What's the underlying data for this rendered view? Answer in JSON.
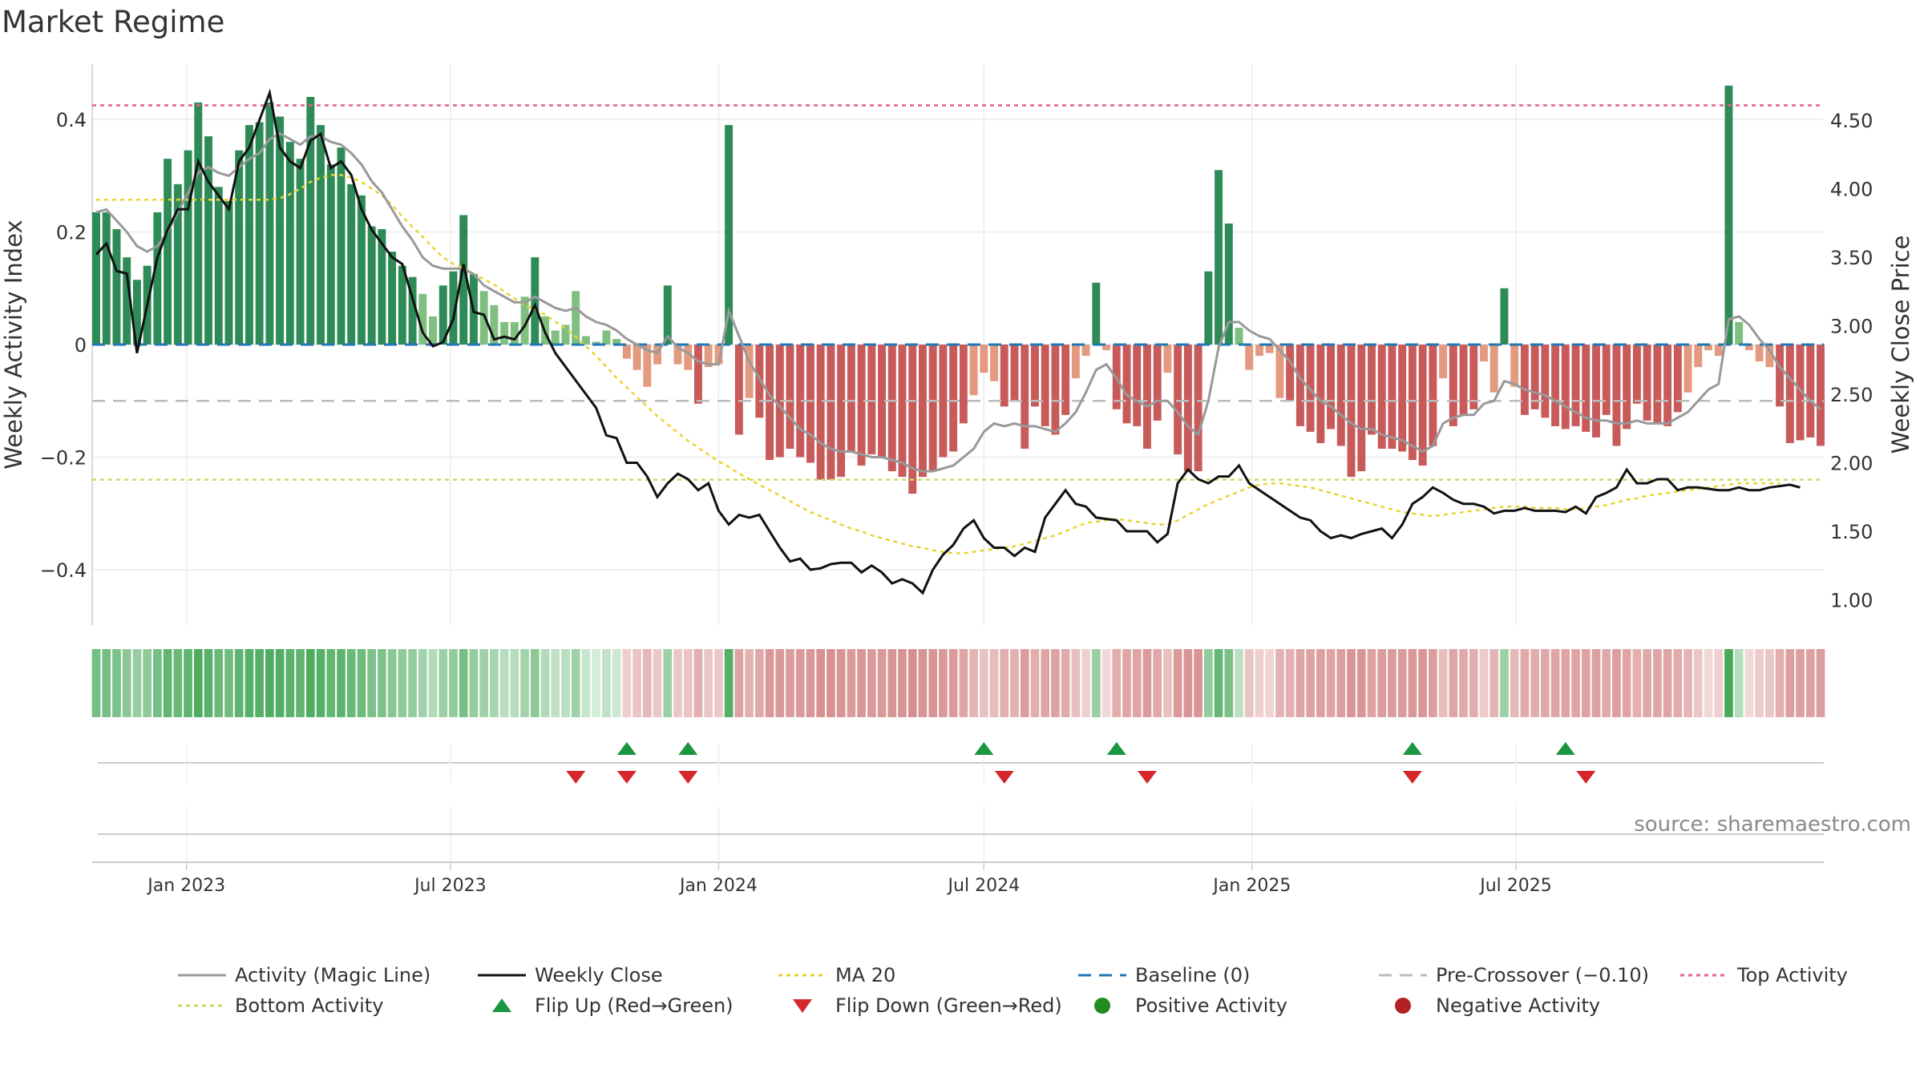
{
  "title": "Market Regime",
  "source": "source: sharemaestro.com",
  "chart_data": {
    "type": "bar",
    "start_date": "2022-10-31",
    "y_left_label": "Weekly Activity Index",
    "y_right_label": "Weekly Close Price",
    "y_left_range": [
      -0.5,
      0.5
    ],
    "y_right_range": [
      0.9,
      4.9
    ],
    "y_left_ticks": [
      {
        "v": 0.4,
        "label": "0.4"
      },
      {
        "v": 0.2,
        "label": "0.2"
      },
      {
        "v": 0,
        "label": "0"
      },
      {
        "v": -0.2,
        "label": "−0.2"
      },
      {
        "v": -0.4,
        "label": "−0.4"
      }
    ],
    "y_right_ticks": [
      "4.50",
      "4.00",
      "3.50",
      "3.00",
      "2.50",
      "2.00",
      "1.50",
      "1.00"
    ],
    "x_ticks": [
      {
        "label": "Jan 2023",
        "date": "2023-01-01"
      },
      {
        "label": "Jul 2023",
        "date": "2023-07-01"
      },
      {
        "label": "Jan 2024",
        "date": "2024-01-01"
      },
      {
        "label": "Jul 2024",
        "date": "2024-07-01"
      },
      {
        "label": "Jan 2025",
        "date": "2025-01-01"
      },
      {
        "label": "Jul 2025",
        "date": "2025-07-01"
      }
    ],
    "activity": [
      0.235,
      0.235,
      0.205,
      0.155,
      0.115,
      0.14,
      0.235,
      0.33,
      0.285,
      0.345,
      0.43,
      0.37,
      0.28,
      0.255,
      0.345,
      0.39,
      0.395,
      0.43,
      0.405,
      0.36,
      0.33,
      0.44,
      0.39,
      0.32,
      0.35,
      0.285,
      0.265,
      0.21,
      0.205,
      0.165,
      0.14,
      0.12,
      0.09,
      0.05,
      0.105,
      0.13,
      0.23,
      0.125,
      0.095,
      0.07,
      0.04,
      0.04,
      0.085,
      0.155,
      0.05,
      0.025,
      0.035,
      0.095,
      0.015,
      0.005,
      0.025,
      0.01,
      -0.025,
      -0.045,
      -0.075,
      -0.035,
      0.105,
      -0.035,
      -0.045,
      -0.105,
      -0.04,
      -0.035,
      0.39,
      -0.16,
      -0.095,
      -0.13,
      -0.205,
      -0.2,
      -0.185,
      -0.2,
      -0.21,
      -0.24,
      -0.24,
      -0.235,
      -0.19,
      -0.215,
      -0.195,
      -0.2,
      -0.225,
      -0.235,
      -0.265,
      -0.235,
      -0.225,
      -0.2,
      -0.19,
      -0.14,
      -0.09,
      -0.05,
      -0.065,
      -0.11,
      -0.1,
      -0.185,
      -0.11,
      -0.145,
      -0.16,
      -0.125,
      -0.06,
      -0.02,
      0.11,
      -0.01,
      -0.115,
      -0.14,
      -0.145,
      -0.185,
      -0.135,
      -0.05,
      -0.195,
      -0.225,
      -0.225,
      0.13,
      0.31,
      0.215,
      0.03,
      -0.045,
      -0.02,
      -0.015,
      -0.095,
      -0.1,
      -0.145,
      -0.155,
      -0.175,
      -0.15,
      -0.18,
      -0.235,
      -0.225,
      -0.16,
      -0.185,
      -0.185,
      -0.19,
      -0.205,
      -0.215,
      -0.18,
      -0.06,
      -0.145,
      -0.125,
      -0.115,
      -0.03,
      -0.085,
      0.1,
      -0.075,
      -0.125,
      -0.115,
      -0.13,
      -0.145,
      -0.15,
      -0.145,
      -0.155,
      -0.165,
      -0.125,
      -0.18,
      -0.15,
      -0.105,
      -0.135,
      -0.14,
      -0.145,
      -0.12,
      -0.085,
      -0.04,
      -0.01,
      -0.02,
      0.46,
      0.04,
      -0.01,
      -0.03,
      -0.04,
      -0.11,
      -0.175,
      -0.17,
      -0.165,
      -0.18
    ],
    "magic_line": [
      0.235,
      0.24,
      0.22,
      0.2,
      0.175,
      0.165,
      0.175,
      0.2,
      0.235,
      0.27,
      0.305,
      0.315,
      0.305,
      0.3,
      0.315,
      0.33,
      0.34,
      0.365,
      0.375,
      0.365,
      0.355,
      0.37,
      0.37,
      0.36,
      0.355,
      0.34,
      0.32,
      0.29,
      0.27,
      0.24,
      0.21,
      0.185,
      0.155,
      0.14,
      0.135,
      0.135,
      0.135,
      0.125,
      0.105,
      0.095,
      0.085,
      0.075,
      0.075,
      0.085,
      0.075,
      0.065,
      0.06,
      0.065,
      0.05,
      0.04,
      0.035,
      0.025,
      0.01,
      0,
      -0.01,
      -0.015,
      0.015,
      -0.005,
      -0.015,
      -0.03,
      -0.035,
      -0.035,
      0.06,
      0.015,
      -0.03,
      -0.06,
      -0.09,
      -0.11,
      -0.13,
      -0.15,
      -0.16,
      -0.175,
      -0.185,
      -0.19,
      -0.19,
      -0.195,
      -0.2,
      -0.2,
      -0.205,
      -0.21,
      -0.22,
      -0.225,
      -0.225,
      -0.22,
      -0.215,
      -0.2,
      -0.185,
      -0.155,
      -0.14,
      -0.145,
      -0.14,
      -0.145,
      -0.145,
      -0.15,
      -0.155,
      -0.14,
      -0.12,
      -0.085,
      -0.045,
      -0.035,
      -0.06,
      -0.09,
      -0.1,
      -0.11,
      -0.1,
      -0.1,
      -0.12,
      -0.145,
      -0.16,
      -0.1,
      -0.005,
      0.04,
      0.04,
      0.025,
      0.015,
      0.01,
      -0.01,
      -0.03,
      -0.06,
      -0.08,
      -0.1,
      -0.11,
      -0.125,
      -0.14,
      -0.15,
      -0.15,
      -0.16,
      -0.165,
      -0.17,
      -0.18,
      -0.19,
      -0.18,
      -0.14,
      -0.13,
      -0.125,
      -0.125,
      -0.105,
      -0.1,
      -0.065,
      -0.07,
      -0.08,
      -0.085,
      -0.09,
      -0.1,
      -0.11,
      -0.12,
      -0.13,
      -0.135,
      -0.135,
      -0.14,
      -0.14,
      -0.135,
      -0.14,
      -0.14,
      -0.14,
      -0.13,
      -0.12,
      -0.1,
      -0.08,
      -0.07,
      0.045,
      0.05,
      0.035,
      0.01,
      -0.01,
      -0.04,
      -0.06,
      -0.08,
      -0.1,
      -0.115
    ],
    "weekly_close": [
      3.52,
      3.6,
      3.4,
      3.38,
      2.8,
      3.15,
      3.5,
      3.7,
      3.85,
      3.85,
      4.2,
      4.05,
      3.95,
      3.85,
      4.2,
      4.3,
      4.5,
      4.7,
      4.3,
      4.2,
      4.15,
      4.35,
      4.4,
      4.15,
      4.2,
      4.1,
      3.85,
      3.7,
      3.6,
      3.5,
      3.45,
      3.2,
      2.95,
      2.85,
      2.88,
      3.05,
      3.45,
      3.1,
      3.08,
      2.9,
      2.92,
      2.9,
      3.0,
      3.15,
      2.95,
      2.8,
      2.7,
      2.6,
      2.5,
      2.4,
      2.2,
      2.18,
      2.0,
      2.0,
      1.9,
      1.75,
      1.85,
      1.92,
      1.88,
      1.8,
      1.85,
      1.65,
      1.55,
      1.62,
      1.6,
      1.62,
      1.5,
      1.38,
      1.28,
      1.3,
      1.22,
      1.23,
      1.26,
      1.27,
      1.27,
      1.2,
      1.25,
      1.2,
      1.12,
      1.15,
      1.12,
      1.05,
      1.22,
      1.33,
      1.4,
      1.52,
      1.58,
      1.45,
      1.38,
      1.38,
      1.32,
      1.38,
      1.35,
      1.6,
      1.7,
      1.8,
      1.7,
      1.68,
      1.6,
      1.59,
      1.58,
      1.5,
      1.5,
      1.5,
      1.42,
      1.48,
      1.85,
      1.95,
      1.88,
      1.85,
      1.9,
      1.9,
      1.98,
      1.85,
      1.8,
      1.75,
      1.7,
      1.65,
      1.6,
      1.58,
      1.5,
      1.45,
      1.47,
      1.45,
      1.48,
      1.5,
      1.52,
      1.45,
      1.55,
      1.7,
      1.75,
      1.82,
      1.78,
      1.73,
      1.7,
      1.7,
      1.68,
      1.63,
      1.65,
      1.65,
      1.67,
      1.65,
      1.65,
      1.65,
      1.64,
      1.68,
      1.63,
      1.75,
      1.78,
      1.82,
      1.95,
      1.85,
      1.85,
      1.88,
      1.88,
      1.8,
      1.82,
      1.82,
      1.81,
      1.8,
      1.8,
      1.82,
      1.8,
      1.8,
      1.82,
      1.83,
      1.84,
      1.82
    ],
    "ma20": [
      3.92,
      3.92,
      3.92,
      3.92,
      3.92,
      3.92,
      3.92,
      3.92,
      3.92,
      3.92,
      3.92,
      3.92,
      3.92,
      3.92,
      3.92,
      3.92,
      3.92,
      3.92,
      3.93,
      3.96,
      4.0,
      4.05,
      4.08,
      4.1,
      4.1,
      4.08,
      4.05,
      4.0,
      3.95,
      3.88,
      3.8,
      3.72,
      3.65,
      3.57,
      3.5,
      3.45,
      3.42,
      3.38,
      3.34,
      3.3,
      3.25,
      3.2,
      3.15,
      3.12,
      3.08,
      3.03,
      2.98,
      2.92,
      2.85,
      2.78,
      2.7,
      2.62,
      2.55,
      2.48,
      2.41,
      2.34,
      2.28,
      2.22,
      2.16,
      2.11,
      2.06,
      2.01,
      1.97,
      1.92,
      1.88,
      1.84,
      1.8,
      1.76,
      1.72,
      1.68,
      1.64,
      1.61,
      1.58,
      1.55,
      1.52,
      1.5,
      1.47,
      1.45,
      1.43,
      1.41,
      1.39,
      1.38,
      1.36,
      1.35,
      1.34,
      1.34,
      1.35,
      1.36,
      1.37,
      1.38,
      1.39,
      1.41,
      1.43,
      1.45,
      1.47,
      1.5,
      1.53,
      1.56,
      1.57,
      1.58,
      1.59,
      1.58,
      1.57,
      1.56,
      1.55,
      1.55,
      1.58,
      1.62,
      1.66,
      1.7,
      1.73,
      1.76,
      1.79,
      1.82,
      1.84,
      1.85,
      1.85,
      1.84,
      1.83,
      1.82,
      1.8,
      1.78,
      1.76,
      1.74,
      1.72,
      1.7,
      1.68,
      1.66,
      1.64,
      1.63,
      1.62,
      1.61,
      1.62,
      1.63,
      1.64,
      1.65,
      1.66,
      1.67,
      1.68,
      1.68,
      1.68,
      1.67,
      1.67,
      1.67,
      1.66,
      1.66,
      1.67,
      1.68,
      1.69,
      1.71,
      1.73,
      1.74,
      1.76,
      1.77,
      1.78,
      1.79,
      1.8,
      1.81,
      1.82,
      1.83,
      1.84,
      1.85,
      1.85,
      1.85,
      1.85,
      1.85
    ],
    "baseline": 0,
    "pre_crossover": -0.1,
    "top_activity": 0.425,
    "bottom_activity": -0.24,
    "flip_up_dates": [
      "2023-10-30",
      "2023-12-11",
      "2024-07-01",
      "2024-09-30",
      "2025-04-21",
      "2025-08-04"
    ],
    "flip_down_dates": [
      "2023-09-25",
      "2023-10-30",
      "2023-12-11",
      "2024-07-15",
      "2024-10-21",
      "2025-04-21",
      "2025-08-18"
    ],
    "legend": {
      "activity_line": "Activity (Magic Line)",
      "weekly_close": "Weekly Close",
      "ma20": "MA 20",
      "baseline": "Baseline (0)",
      "pre_crossover": "Pre-Crossover (−0.10)",
      "top_activity": "Top Activity",
      "bottom_activity": "Bottom Activity",
      "flip_up": "Flip Up (Red→Green)",
      "flip_down": "Flip Down (Green→Red)",
      "positive_activity": "Positive Activity",
      "negative_activity": "Negative Activity"
    },
    "legend_placement": "bottom"
  },
  "colors": {
    "pos_strong": "#2e8b57",
    "pos_light": "#7fbf7f",
    "neg_strong": "#c85a5a",
    "neg_light": "#e39a80",
    "magic_line": "#999999",
    "weekly_close": "#111111",
    "ma20": "#e8d430",
    "baseline": "#1f77b4",
    "pre_crossover": "#bbbbbb",
    "top_activity": "#e0608a",
    "bottom_activity": "#c8dc60",
    "flip_up": "#1a9641",
    "flip_down": "#d7262b",
    "positive_dot": "#228b22",
    "negative_dot": "#b22222"
  }
}
